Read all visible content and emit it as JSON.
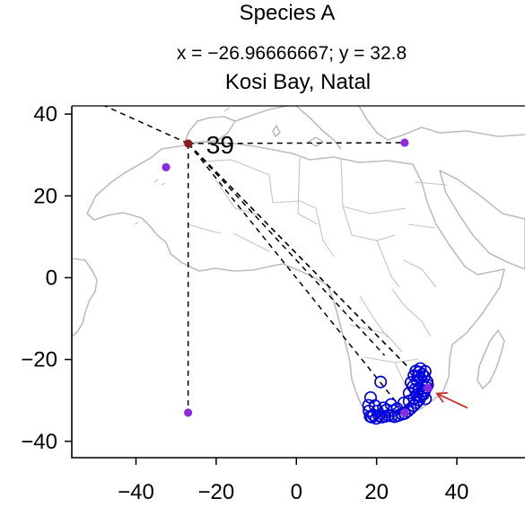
{
  "chart_data": {
    "type": "scatter",
    "title": "Species A",
    "subtitle": "x = −26.96666667; y = 32.8",
    "caption": "Kosi Bay, Natal",
    "xlim": [
      -56,
      57
    ],
    "ylim": [
      -44,
      42
    ],
    "xticks": [
      -40,
      -20,
      0,
      20,
      40
    ],
    "yticks": [
      -40,
      -20,
      0,
      20,
      40
    ],
    "xtick_labels": [
      "−40",
      "−20",
      "0",
      "20",
      "40"
    ],
    "ytick_labels": [
      "−40",
      "−20",
      "0",
      "20",
      "40"
    ],
    "grid": false,
    "basemap": "world country outlines (Africa, southern Europe, eastern South America)",
    "selected_point": {
      "x": -26.96666667,
      "y": 32.8,
      "label": "39",
      "color": "#8b1a1a"
    },
    "reference_points": {
      "color": "#8b2be2",
      "points": [
        [
          -32.5,
          27.0
        ],
        [
          27.0,
          33.0
        ],
        [
          -27.0,
          -33.0
        ],
        [
          27.0,
          -33.0
        ],
        [
          32.8,
          -27.0
        ]
      ]
    },
    "connection_lines_to": [
      [
        -50,
        43
      ],
      [
        27.0,
        33.0
      ],
      [
        -27.0,
        -33.0
      ],
      [
        22.0,
        -19.0
      ],
      [
        28.0,
        -22.0
      ],
      [
        30.0,
        -24.0
      ],
      [
        27.0,
        -33.0
      ]
    ],
    "occurrences": {
      "color": "#0000dd",
      "marker": "open-circle",
      "points": [
        [
          18.4,
          -33.9
        ],
        [
          18.8,
          -34.1
        ],
        [
          19.2,
          -33.6
        ],
        [
          19.9,
          -34.4
        ],
        [
          20.6,
          -33.8
        ],
        [
          21.3,
          -34.1
        ],
        [
          22.1,
          -33.9
        ],
        [
          22.9,
          -33.7
        ],
        [
          23.7,
          -33.8
        ],
        [
          24.5,
          -34.0
        ],
        [
          25.4,
          -33.7
        ],
        [
          26.3,
          -33.4
        ],
        [
          27.0,
          -33.2
        ],
        [
          27.8,
          -32.6
        ],
        [
          28.5,
          -32.0
        ],
        [
          29.2,
          -31.3
        ],
        [
          29.9,
          -30.6
        ],
        [
          30.6,
          -29.9
        ],
        [
          31.0,
          -29.1
        ],
        [
          31.4,
          -28.4
        ],
        [
          32.0,
          -27.6
        ],
        [
          32.4,
          -26.8
        ],
        [
          32.7,
          -26.2
        ],
        [
          18.1,
          -32.6
        ],
        [
          18.0,
          -31.2
        ],
        [
          18.5,
          -29.3
        ],
        [
          20.2,
          -32.6
        ],
        [
          22.5,
          -32.3
        ],
        [
          24.2,
          -32.5
        ],
        [
          25.1,
          -32.0
        ],
        [
          26.8,
          -30.6
        ],
        [
          28.1,
          -30.2
        ],
        [
          29.3,
          -29.5
        ],
        [
          30.1,
          -28.6
        ],
        [
          30.6,
          -27.1
        ],
        [
          31.3,
          -26.4
        ],
        [
          30.1,
          -25.2
        ],
        [
          30.9,
          -24.6
        ],
        [
          31.4,
          -23.6
        ],
        [
          30.6,
          -23.1
        ],
        [
          29.8,
          -22.8
        ],
        [
          30.3,
          -24.1
        ],
        [
          29.3,
          -23.9
        ],
        [
          31.9,
          -24.2
        ],
        [
          32.6,
          -25.4
        ],
        [
          28.6,
          -25.6
        ],
        [
          29.1,
          -26.6
        ],
        [
          21.0,
          -25.5
        ],
        [
          23.6,
          -31.0
        ],
        [
          21.7,
          -31.8
        ],
        [
          19.6,
          -31.3
        ],
        [
          28.1,
          -28.2
        ],
        [
          31.6,
          -28.6
        ],
        [
          32.2,
          -29.6
        ],
        [
          29.6,
          -27.3
        ],
        [
          30.9,
          -22.2
        ],
        [
          32.1,
          -22.9
        ]
      ]
    },
    "arrow": {
      "color": "#cc2b2b",
      "points_to": [
        32.8,
        -27.0
      ]
    }
  }
}
